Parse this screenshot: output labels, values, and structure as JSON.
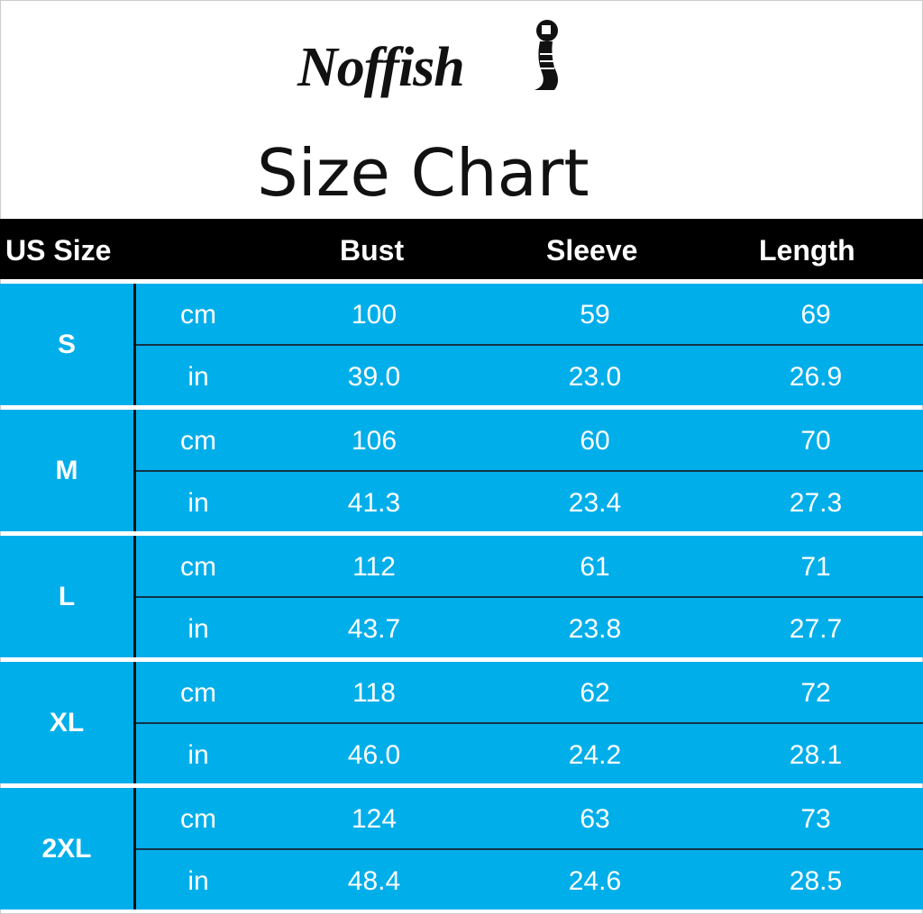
{
  "brand": "Noffish",
  "title": "Size Chart",
  "colors": {
    "row_bg": "#00aeea",
    "header_bg": "#000000",
    "text": "#ffffff"
  },
  "chart_data": {
    "type": "table",
    "title": "Size Chart",
    "columns": [
      "US Size",
      "",
      "Bust",
      "Sleeve",
      "Length"
    ],
    "rows": [
      {
        "size": "S",
        "cm": {
          "unit": "cm",
          "bust": "100",
          "sleeve": "59",
          "length": "69"
        },
        "in": {
          "unit": "in",
          "bust": "39.0",
          "sleeve": "23.0",
          "length": "26.9"
        }
      },
      {
        "size": "M",
        "cm": {
          "unit": "cm",
          "bust": "106",
          "sleeve": "60",
          "length": "70"
        },
        "in": {
          "unit": "in",
          "bust": "41.3",
          "sleeve": "23.4",
          "length": "27.3"
        }
      },
      {
        "size": "L",
        "cm": {
          "unit": "cm",
          "bust": "112",
          "sleeve": "61",
          "length": "71"
        },
        "in": {
          "unit": "in",
          "bust": "43.7",
          "sleeve": "23.8",
          "length": "27.7"
        }
      },
      {
        "size": "XL",
        "cm": {
          "unit": "cm",
          "bust": "118",
          "sleeve": "62",
          "length": "72"
        },
        "in": {
          "unit": "in",
          "bust": "46.0",
          "sleeve": "24.2",
          "length": "28.1"
        }
      },
      {
        "size": "2XL",
        "cm": {
          "unit": "cm",
          "bust": "124",
          "sleeve": "63",
          "length": "73"
        },
        "in": {
          "unit": "in",
          "bust": "48.4",
          "sleeve": "24.6",
          "length": "28.5"
        }
      }
    ]
  }
}
